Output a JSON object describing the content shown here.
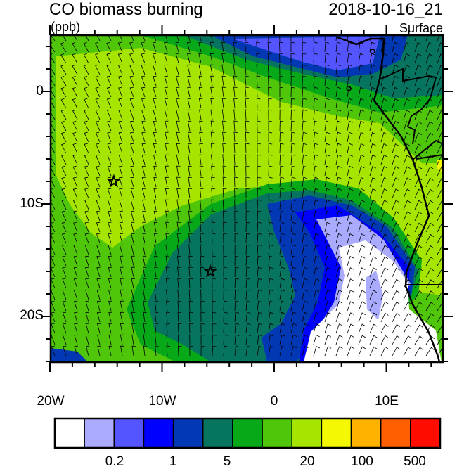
{
  "title": "CO biomass burning",
  "units": "(ppb)",
  "time": "2018-10-16_21",
  "level": "Surface",
  "map": {
    "lon_range": [
      "20W",
      "15E"
    ],
    "lat_range": [
      "5N",
      "24S"
    ],
    "lat_labels": [
      "0",
      "10S",
      "20S"
    ],
    "lon_labels": [
      "20W",
      "10W",
      "0",
      "10E"
    ],
    "markers": [
      {
        "name": "star",
        "lon": -14.3,
        "lat": -8.0
      },
      {
        "name": "star",
        "lon": -5.7,
        "lat": -16.0
      }
    ],
    "overlay": "wind-barbs"
  },
  "colorbar": {
    "colors": [
      "#ffffff",
      "#aaaaff",
      "#5555ff",
      "#0000ff",
      "#0338b5",
      "#06745f",
      "#08a919",
      "#50c60a",
      "#a6e500",
      "#f4f800",
      "#ffb300",
      "#ff5f00",
      "#ff0b00"
    ],
    "labels": [
      "0.2",
      "1",
      "5",
      "20",
      "100",
      "500"
    ]
  }
}
